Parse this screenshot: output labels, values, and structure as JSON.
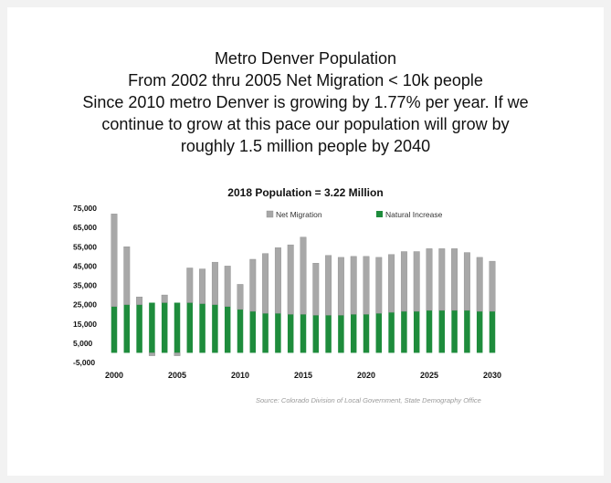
{
  "titles": {
    "line1": "Metro Denver Population",
    "line2": "From 2002 thru 2005 Net Migration < 10k people",
    "line3": "Since 2010 metro Denver is growing by  1.77% per year. If we",
    "line4": "continue to grow at this pace our population will grow by",
    "line5": "roughly 1.5 million people by 2040"
  },
  "source": "Source: Colorado Division of Local Government, State Demography Office",
  "colors": {
    "net_migration": "#a8a8a8",
    "natural_increase": "#1e8c3c"
  },
  "chart_data": {
    "type": "bar",
    "stacked": true,
    "title": "2018 Population = 3.22 Million",
    "xlabel": "",
    "ylabel": "",
    "x": [
      2000,
      2001,
      2002,
      2003,
      2004,
      2005,
      2006,
      2007,
      2008,
      2009,
      2010,
      2011,
      2012,
      2013,
      2014,
      2015,
      2016,
      2017,
      2018,
      2019,
      2020,
      2021,
      2022,
      2023,
      2024,
      2025,
      2026,
      2027,
      2028,
      2029,
      2030
    ],
    "x_tick_labels": [
      "2000",
      "2005",
      "2010",
      "2015",
      "2020",
      "2025",
      "2030"
    ],
    "y_tick_labels": [
      "75,000",
      "65,000",
      "55,000",
      "45,000",
      "35,000",
      "25,000",
      "15,000",
      "5,000",
      "-5,000"
    ],
    "ylim": [
      -5000,
      75000
    ],
    "legend_position": "top",
    "series": [
      {
        "name": "Net Migration",
        "color": "#a8a8a8",
        "values": [
          48000,
          30000,
          4000,
          -1500,
          4000,
          -1500,
          18000,
          18000,
          22000,
          21000,
          13000,
          27000,
          31000,
          34000,
          36000,
          40000,
          27000,
          31000,
          30000,
          30000,
          30000,
          29000,
          30000,
          31000,
          31000,
          32000,
          32000,
          32000,
          30000,
          28000,
          26000
        ]
      },
      {
        "name": "Natural Increase",
        "color": "#1e8c3c",
        "values": [
          24000,
          25000,
          25000,
          26000,
          26000,
          26000,
          26000,
          25500,
          25000,
          24000,
          22500,
          21500,
          20500,
          20500,
          20000,
          20000,
          19500,
          19500,
          19500,
          20000,
          20000,
          20500,
          21000,
          21500,
          21500,
          22000,
          22000,
          22000,
          22000,
          21500,
          21500
        ]
      }
    ]
  }
}
